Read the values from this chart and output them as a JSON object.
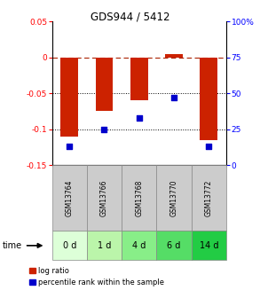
{
  "title": "GDS944 / 5412",
  "categories": [
    "GSM13764",
    "GSM13766",
    "GSM13768",
    "GSM13770",
    "GSM13772"
  ],
  "time_labels": [
    "0 d",
    "1 d",
    "4 d",
    "6 d",
    "14 d"
  ],
  "log_ratios": [
    -0.11,
    -0.075,
    -0.06,
    0.005,
    -0.115
  ],
  "percentile_ranks": [
    13,
    25,
    33,
    47,
    13
  ],
  "bar_color": "#cc2200",
  "dot_color": "#0000cc",
  "ylim_left": [
    -0.15,
    0.05
  ],
  "ylim_right": [
    0,
    100
  ],
  "yticks_left": [
    -0.15,
    -0.1,
    -0.05,
    0.0,
    0.05
  ],
  "yticks_right": [
    0,
    25,
    50,
    75,
    100
  ],
  "ytick_labels_left": [
    "-0.15",
    "-0.1",
    "-0.05",
    "0",
    "0.05"
  ],
  "ytick_labels_right": [
    "0",
    "25",
    "50",
    "75",
    "100%"
  ],
  "green_shades": [
    "#ddffd8",
    "#bbf5aa",
    "#88ee88",
    "#55dd66",
    "#22cc44"
  ],
  "gsm_bg_color": "#cccccc",
  "bar_width": 0.5,
  "bg_color": "#ffffff"
}
